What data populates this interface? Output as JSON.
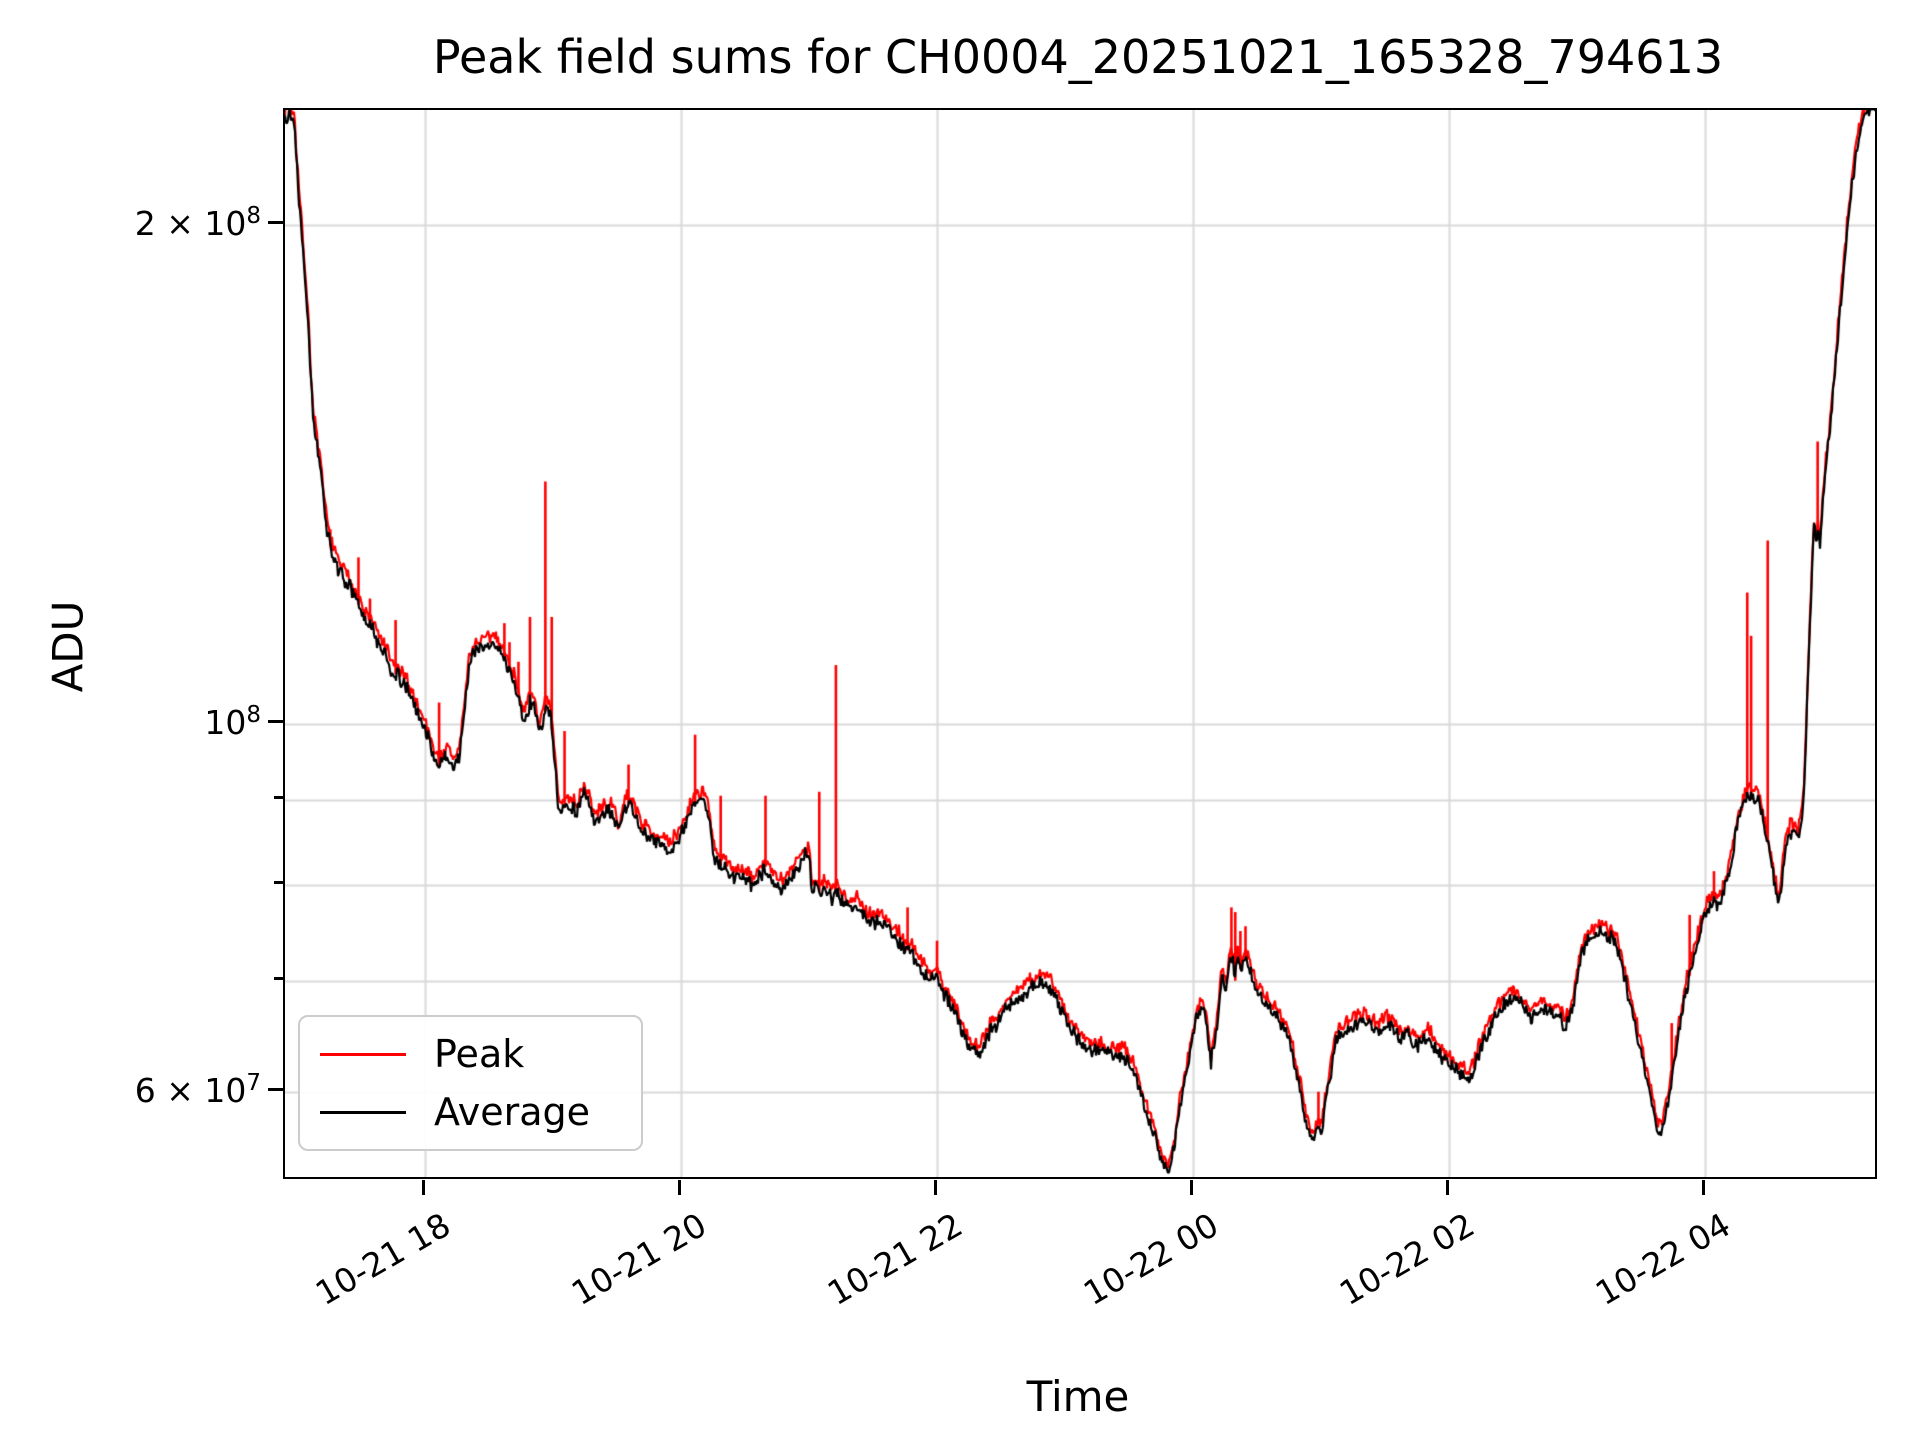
{
  "chart": {
    "title": "Peak field sums for CH0004_20251021_165328_794613",
    "xlabel": "Time",
    "ylabel": "ADU"
  },
  "legend": {
    "entries": [
      {
        "label": "Peak",
        "color": "#ff0000"
      },
      {
        "label": "Average",
        "color": "#000000"
      }
    ]
  },
  "chart_data": {
    "type": "line",
    "title": "Peak field sums for CH0004_20251021_165328_794613",
    "xlabel": "Time",
    "ylabel": "ADU",
    "yscale": "log",
    "grid": "both",
    "grid_color": "#d9d9d9",
    "legend_position": "lower left",
    "x_unit_note": "hours since 2025-10-21 00:00 (values > 24 are 10-22)",
    "value_unit_note": "ADU in millions (1 = 1e6 ADU)",
    "xlim": [
      16.906,
      29.328
    ],
    "ylim_adu": [
      53300000,
      234500000
    ],
    "x_ticks": [
      {
        "t": 18,
        "label": "10-21 18"
      },
      {
        "t": 20,
        "label": "10-21 20"
      },
      {
        "t": 22,
        "label": "10-21 22"
      },
      {
        "t": 24,
        "label": "10-22 00"
      },
      {
        "t": 26,
        "label": "10-22 02"
      },
      {
        "t": 28,
        "label": "10-22 04"
      }
    ],
    "y_ticks": [
      {
        "value_adu": 200000000,
        "mantissa": "2 × 10",
        "exponent": "8"
      },
      {
        "value_adu": 100000000,
        "mantissa": "10",
        "exponent": "8"
      },
      {
        "value_adu": 60000000,
        "mantissa": "6 × 10",
        "exponent": "7"
      }
    ],
    "y_minor_gridlines_adu": [
      60000000,
      70000000,
      80000000,
      90000000,
      100000000,
      200000000
    ],
    "series": [
      {
        "name": "Peak",
        "color": "#ff0000",
        "role": "peak-envelope"
      },
      {
        "name": "Average",
        "color": "#000000",
        "role": "average"
      }
    ],
    "peak_fringe_log_offset": 0.005,
    "average_millions": [
      [
        16.91,
        233
      ],
      [
        16.95,
        233
      ],
      [
        16.98,
        230
      ],
      [
        17.02,
        205
      ],
      [
        17.06,
        188
      ],
      [
        17.09,
        173
      ],
      [
        17.12,
        155
      ],
      [
        17.16,
        146
      ],
      [
        17.2,
        138.5
      ],
      [
        17.23,
        131.5
      ],
      [
        17.27,
        127
      ],
      [
        17.31,
        124.5
      ],
      [
        17.36,
        122.5
      ],
      [
        17.41,
        121
      ],
      [
        17.45,
        119.5
      ],
      [
        17.48,
        118
      ],
      [
        17.52,
        115.5
      ],
      [
        17.55,
        115
      ],
      [
        17.59,
        114
      ],
      [
        17.63,
        112
      ],
      [
        17.69,
        110
      ],
      [
        17.74,
        107.5
      ],
      [
        17.78,
        107
      ],
      [
        17.82,
        106
      ],
      [
        17.87,
        104.5
      ],
      [
        17.92,
        102.5
      ],
      [
        17.98,
        100
      ],
      [
        18.03,
        98
      ],
      [
        18.08,
        95
      ],
      [
        18.11,
        94.2
      ],
      [
        18.16,
        95.5
      ],
      [
        18.2,
        95
      ],
      [
        18.23,
        94
      ],
      [
        18.27,
        96
      ],
      [
        18.31,
        102
      ],
      [
        18.34,
        108
      ],
      [
        18.38,
        110.5
      ],
      [
        18.45,
        111
      ],
      [
        18.51,
        111.5
      ],
      [
        18.55,
        112
      ],
      [
        18.6,
        110
      ],
      [
        18.66,
        107.5
      ],
      [
        18.73,
        104
      ],
      [
        18.78,
        100
      ],
      [
        18.82,
        103
      ],
      [
        18.85,
        103
      ],
      [
        18.89,
        99
      ],
      [
        18.91,
        99.5
      ],
      [
        18.95,
        102.5
      ],
      [
        18.98,
        101
      ],
      [
        19.02,
        94
      ],
      [
        19.04,
        89
      ],
      [
        19.07,
        88.5
      ],
      [
        19.11,
        89.5
      ],
      [
        19.15,
        89
      ],
      [
        19.19,
        88.5
      ],
      [
        19.24,
        91
      ],
      [
        19.29,
        89
      ],
      [
        19.33,
        87
      ],
      [
        19.38,
        88
      ],
      [
        19.44,
        88.5
      ],
      [
        19.48,
        87.5
      ],
      [
        19.52,
        86
      ],
      [
        19.56,
        89
      ],
      [
        19.6,
        89.5
      ],
      [
        19.66,
        87.5
      ],
      [
        19.7,
        86
      ],
      [
        19.75,
        85.5
      ],
      [
        19.79,
        85
      ],
      [
        19.84,
        84.5
      ],
      [
        19.88,
        84
      ],
      [
        19.91,
        83.5
      ],
      [
        19.95,
        84.5
      ],
      [
        20.01,
        86
      ],
      [
        20.06,
        88
      ],
      [
        20.12,
        90
      ],
      [
        20.16,
        90
      ],
      [
        20.2,
        89.5
      ],
      [
        20.23,
        86
      ],
      [
        20.26,
        83
      ],
      [
        20.29,
        82.5
      ],
      [
        20.32,
        82
      ],
      [
        20.36,
        81.5
      ],
      [
        20.4,
        81
      ],
      [
        20.45,
        81
      ],
      [
        20.49,
        80.5
      ],
      [
        20.54,
        80
      ],
      [
        20.58,
        80
      ],
      [
        20.62,
        81
      ],
      [
        20.66,
        82
      ],
      [
        20.7,
        81
      ],
      [
        20.73,
        80
      ],
      [
        20.77,
        79.5
      ],
      [
        20.8,
        79.5
      ],
      [
        20.83,
        80
      ],
      [
        20.87,
        81
      ],
      [
        20.91,
        82
      ],
      [
        20.95,
        83
      ],
      [
        20.98,
        83.5
      ],
      [
        21.0,
        83
      ],
      [
        21.02,
        80
      ],
      [
        21.05,
        79.5
      ],
      [
        21.09,
        79
      ],
      [
        21.12,
        79.5
      ],
      [
        21.16,
        79
      ],
      [
        21.18,
        78.5
      ],
      [
        21.21,
        79
      ],
      [
        21.24,
        78.5
      ],
      [
        21.28,
        78
      ],
      [
        21.32,
        77.5
      ],
      [
        21.36,
        77.8
      ],
      [
        21.4,
        77.2
      ],
      [
        21.44,
        76.5
      ],
      [
        21.48,
        76
      ],
      [
        21.52,
        76
      ],
      [
        21.56,
        76.2
      ],
      [
        21.59,
        75.5
      ],
      [
        21.63,
        75
      ],
      [
        21.67,
        74.5
      ],
      [
        21.73,
        73.5
      ],
      [
        21.77,
        73
      ],
      [
        21.81,
        72.5
      ],
      [
        21.84,
        72
      ],
      [
        21.88,
        71
      ],
      [
        21.94,
        70
      ],
      [
        22.0,
        70.5
      ],
      [
        22.04,
        69
      ],
      [
        22.09,
        68
      ],
      [
        22.14,
        67
      ],
      [
        22.2,
        65
      ],
      [
        22.24,
        64.2
      ],
      [
        22.29,
        63.5
      ],
      [
        22.34,
        63.3
      ],
      [
        22.38,
        64.5
      ],
      [
        22.43,
        65.5
      ],
      [
        22.48,
        66
      ],
      [
        22.52,
        67
      ],
      [
        22.59,
        67.8
      ],
      [
        22.65,
        68.5
      ],
      [
        22.72,
        69.2
      ],
      [
        22.78,
        69.7
      ],
      [
        22.84,
        70
      ],
      [
        22.9,
        69
      ],
      [
        22.96,
        67.5
      ],
      [
        23.02,
        66
      ],
      [
        23.07,
        65
      ],
      [
        23.13,
        64.2
      ],
      [
        23.2,
        63.8
      ],
      [
        23.25,
        63.5
      ],
      [
        23.31,
        63.3
      ],
      [
        23.37,
        63.2
      ],
      [
        23.43,
        63
      ],
      [
        23.48,
        62.8
      ],
      [
        23.52,
        62
      ],
      [
        23.57,
        60.5
      ],
      [
        23.62,
        59
      ],
      [
        23.66,
        57.5
      ],
      [
        23.71,
        56
      ],
      [
        23.76,
        54.5
      ],
      [
        23.8,
        53.6
      ],
      [
        23.82,
        54
      ],
      [
        23.85,
        55.5
      ],
      [
        23.88,
        57.5
      ],
      [
        23.91,
        59.5
      ],
      [
        23.95,
        61.5
      ],
      [
        23.99,
        64
      ],
      [
        24.03,
        66.5
      ],
      [
        24.06,
        67.5
      ],
      [
        24.09,
        67
      ],
      [
        24.13,
        63.5
      ],
      [
        24.14,
        62.5
      ],
      [
        24.16,
        64
      ],
      [
        24.19,
        66
      ],
      [
        24.21,
        69
      ],
      [
        24.23,
        71
      ],
      [
        24.26,
        69
      ],
      [
        24.28,
        71.5
      ],
      [
        24.31,
        72
      ],
      [
        24.33,
        70
      ],
      [
        24.35,
        72.5
      ],
      [
        24.38,
        70.5
      ],
      [
        24.4,
        72.5
      ],
      [
        24.42,
        72
      ],
      [
        24.45,
        71
      ],
      [
        24.47,
        70
      ],
      [
        24.49,
        69
      ],
      [
        24.52,
        68.5
      ],
      [
        24.54,
        68
      ],
      [
        24.57,
        67.5
      ],
      [
        24.6,
        67.2
      ],
      [
        24.64,
        67
      ],
      [
        24.68,
        66
      ],
      [
        24.72,
        65
      ],
      [
        24.76,
        64
      ],
      [
        24.8,
        62
      ],
      [
        24.84,
        60
      ],
      [
        24.88,
        57.5
      ],
      [
        24.91,
        56.5
      ],
      [
        24.95,
        56.2
      ],
      [
        24.98,
        57.5
      ],
      [
        25.0,
        56.5
      ],
      [
        25.03,
        59
      ],
      [
        25.07,
        61
      ],
      [
        25.11,
        64.2
      ],
      [
        25.15,
        65
      ],
      [
        25.19,
        65.2
      ],
      [
        25.24,
        65.5
      ],
      [
        25.31,
        66
      ],
      [
        25.37,
        65.8
      ],
      [
        25.43,
        65.5
      ],
      [
        25.48,
        65.5
      ],
      [
        25.52,
        66
      ],
      [
        25.57,
        65.5
      ],
      [
        25.62,
        64.5
      ],
      [
        25.66,
        65
      ],
      [
        25.71,
        64.5
      ],
      [
        25.76,
        64
      ],
      [
        25.81,
        64.7
      ],
      [
        25.85,
        64.5
      ],
      [
        25.9,
        63.5
      ],
      [
        25.95,
        63
      ],
      [
        25.99,
        62.5
      ],
      [
        26.04,
        62
      ],
      [
        26.09,
        61.5
      ],
      [
        26.13,
        61.2
      ],
      [
        26.16,
        61
      ],
      [
        26.2,
        62
      ],
      [
        26.24,
        63.5
      ],
      [
        26.29,
        65
      ],
      [
        26.34,
        66
      ],
      [
        26.38,
        67
      ],
      [
        26.43,
        67.8
      ],
      [
        26.48,
        68.2
      ],
      [
        26.51,
        68.3
      ],
      [
        26.55,
        68
      ],
      [
        26.59,
        67.2
      ],
      [
        26.63,
        66.5
      ],
      [
        26.68,
        67
      ],
      [
        26.73,
        67.2
      ],
      [
        26.77,
        67.2
      ],
      [
        26.82,
        67
      ],
      [
        26.87,
        66.5
      ],
      [
        26.9,
        65.5
      ],
      [
        26.93,
        66
      ],
      [
        26.96,
        67
      ],
      [
        26.99,
        69
      ],
      [
        27.02,
        72
      ],
      [
        27.06,
        73.5
      ],
      [
        27.09,
        74.2
      ],
      [
        27.13,
        74.5
      ],
      [
        27.18,
        74.8
      ],
      [
        27.23,
        74.5
      ],
      [
        27.27,
        74.2
      ],
      [
        27.31,
        73.5
      ],
      [
        27.34,
        72
      ],
      [
        27.38,
        70
      ],
      [
        27.41,
        68
      ],
      [
        27.45,
        66
      ],
      [
        27.49,
        64
      ],
      [
        27.53,
        62
      ],
      [
        27.57,
        60
      ],
      [
        27.6,
        58.5
      ],
      [
        27.63,
        57
      ],
      [
        27.66,
        56.6
      ],
      [
        27.68,
        57.5
      ],
      [
        27.71,
        59
      ],
      [
        27.74,
        61
      ],
      [
        27.78,
        64
      ],
      [
        27.82,
        67
      ],
      [
        27.85,
        69
      ],
      [
        27.88,
        70.5
      ],
      [
        27.91,
        72
      ],
      [
        27.95,
        74
      ],
      [
        27.98,
        76
      ],
      [
        28.01,
        77
      ],
      [
        28.04,
        77.8
      ],
      [
        28.07,
        78
      ],
      [
        28.1,
        77.8
      ],
      [
        28.13,
        78.5
      ],
      [
        28.16,
        80
      ],
      [
        28.2,
        82
      ],
      [
        28.23,
        85
      ],
      [
        28.26,
        87.5
      ],
      [
        28.29,
        89
      ],
      [
        28.32,
        90
      ],
      [
        28.35,
        90.5
      ],
      [
        28.38,
        90
      ],
      [
        28.41,
        90.5
      ],
      [
        28.43,
        89
      ],
      [
        28.46,
        87
      ],
      [
        28.49,
        85
      ],
      [
        28.52,
        82
      ],
      [
        28.55,
        79.5
      ],
      [
        28.57,
        77.8
      ],
      [
        28.59,
        79
      ],
      [
        28.62,
        83
      ],
      [
        28.64,
        85
      ],
      [
        28.67,
        86
      ],
      [
        28.7,
        86.2
      ],
      [
        28.73,
        85.5
      ],
      [
        28.76,
        88
      ],
      [
        28.78,
        93
      ],
      [
        28.8,
        105
      ],
      [
        28.83,
        120
      ],
      [
        28.85,
        132
      ],
      [
        28.87,
        128
      ],
      [
        28.88,
        131
      ],
      [
        28.9,
        128
      ],
      [
        28.92,
        136
      ],
      [
        28.95,
        144
      ],
      [
        28.99,
        155
      ],
      [
        29.03,
        168
      ],
      [
        29.07,
        183
      ],
      [
        29.11,
        198
      ],
      [
        29.15,
        212
      ],
      [
        29.19,
        223
      ],
      [
        29.23,
        231
      ],
      [
        29.26,
        234
      ],
      [
        29.33,
        234.5
      ]
    ],
    "peak_spikes_millions": [
      [
        17.23,
        133
      ],
      [
        17.26,
        131
      ],
      [
        17.48,
        126
      ],
      [
        17.57,
        119
      ],
      [
        17.77,
        115.5
      ],
      [
        18.11,
        103
      ],
      [
        18.62,
        115
      ],
      [
        18.66,
        112
      ],
      [
        18.73,
        109
      ],
      [
        18.82,
        116
      ],
      [
        18.94,
        140
      ],
      [
        18.99,
        116
      ],
      [
        19.09,
        99
      ],
      [
        19.59,
        94.5
      ],
      [
        20.11,
        98.5
      ],
      [
        20.31,
        90.5
      ],
      [
        20.66,
        90.5
      ],
      [
        21.08,
        91
      ],
      [
        21.21,
        108.5
      ],
      [
        21.77,
        77.5
      ],
      [
        22.0,
        74
      ],
      [
        24.3,
        77.5
      ],
      [
        24.33,
        77
      ],
      [
        24.37,
        75
      ],
      [
        24.41,
        75.5
      ],
      [
        24.98,
        60
      ],
      [
        27.74,
        66
      ],
      [
        27.88,
        76.7
      ],
      [
        27.95,
        75
      ],
      [
        28.07,
        81.5
      ],
      [
        28.33,
        120
      ],
      [
        28.36,
        113
      ],
      [
        28.49,
        129
      ],
      [
        28.88,
        148
      ]
    ]
  }
}
